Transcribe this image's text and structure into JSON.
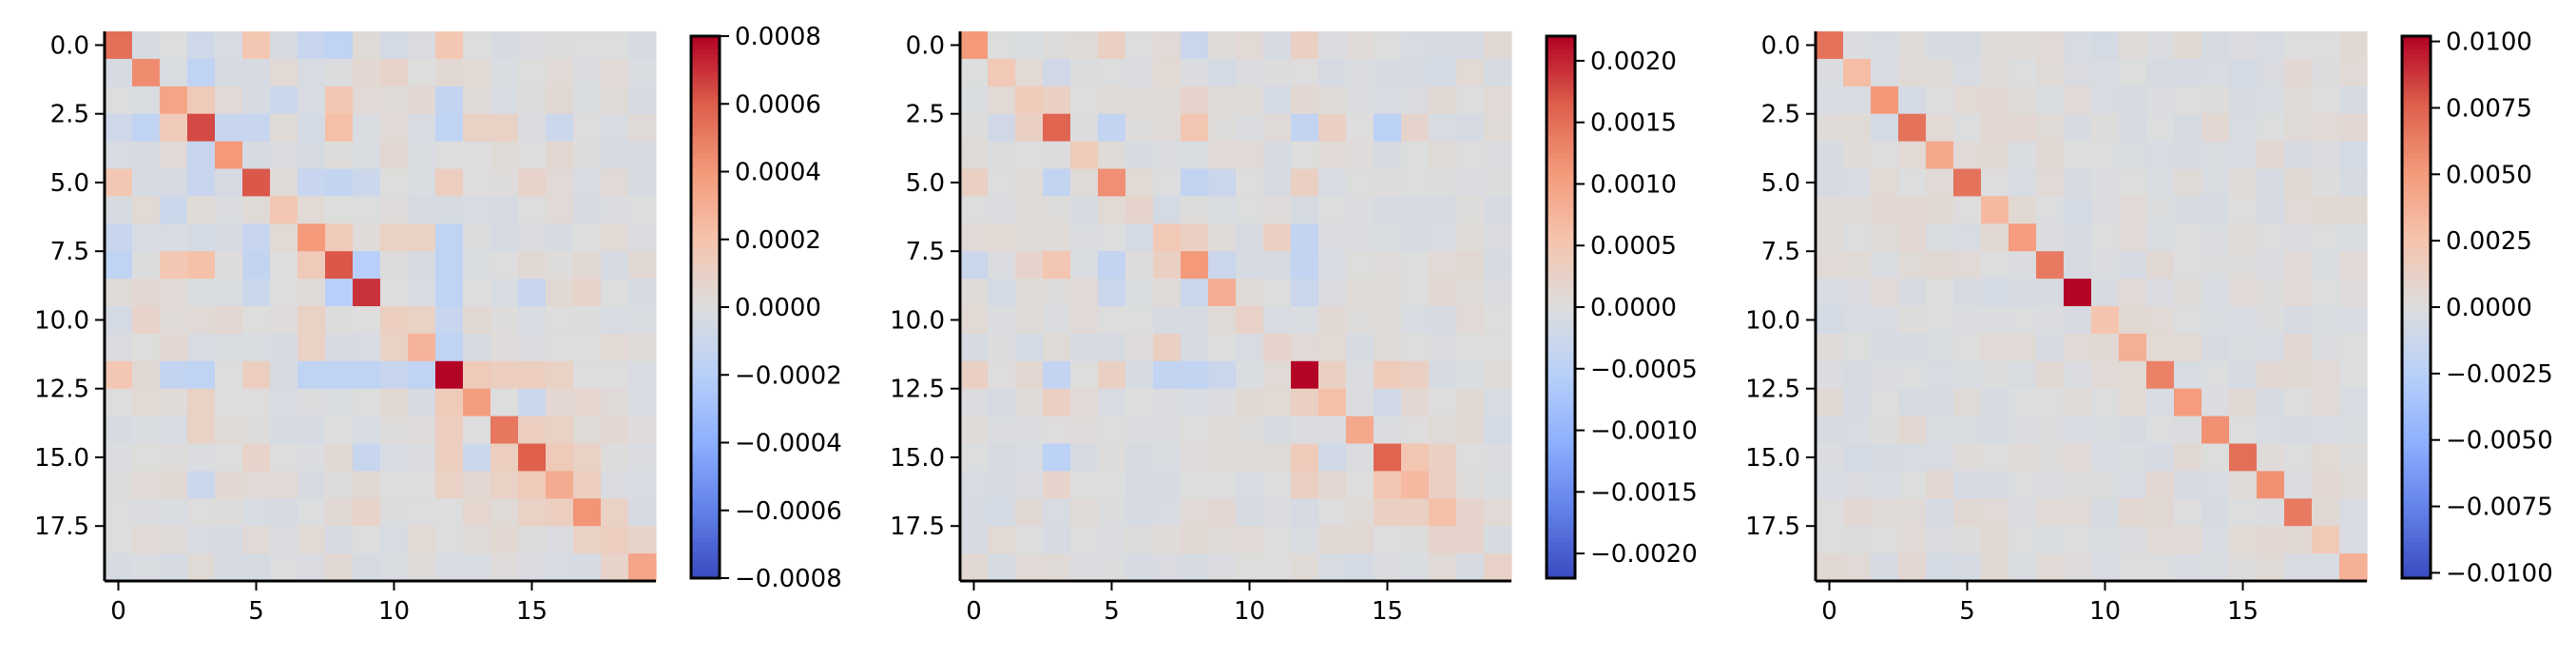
{
  "chart_data": [
    {
      "type": "heatmap",
      "size": 20,
      "vmin": -0.0008,
      "vmax": 0.0008,
      "colormap": "coolwarm",
      "x_ticks": [
        0,
        5,
        10,
        15
      ],
      "x_tick_labels": [
        "0",
        "5",
        "10",
        "15"
      ],
      "y_ticks": [
        0,
        2.5,
        5,
        7.5,
        10,
        12.5,
        15,
        17.5
      ],
      "y_tick_labels": [
        "0.0",
        "2.5",
        "5.0",
        "7.5",
        "10.0",
        "12.5",
        "15.0",
        "17.5"
      ],
      "colorbar_ticks": [
        0.0008,
        0.0006,
        0.0004,
        0.0002,
        0,
        -0.0002,
        -0.0004,
        -0.0006,
        -0.0008
      ],
      "colorbar_tick_labels": [
        "0.0008",
        "0.0006",
        "0.0004",
        "0.0002",
        "0.0000",
        "−0.0002",
        "−0.0004",
        "−0.0006",
        "−0.0008"
      ],
      "diagonal": [
        0.00055,
        0.00045,
        0.00035,
        0.00065,
        0.0004,
        0.00062,
        0.00018,
        0.0004,
        0.00062,
        0.0007,
        0.00012,
        0.00028,
        0.0008,
        0.00038,
        0.00052,
        0.0006,
        0.00032,
        0.00042,
        0.00012,
        0.00035
      ],
      "off_diagonal": [
        {
          "i": 0,
          "j": 5,
          "v": 0.00018
        },
        {
          "i": 0,
          "j": 12,
          "v": 0.00018
        },
        {
          "i": 0,
          "j": 7,
          "v": -0.00012
        },
        {
          "i": 0,
          "j": 8,
          "v": -0.00016
        },
        {
          "i": 0,
          "j": 3,
          "v": -8e-05
        },
        {
          "i": 1,
          "j": 3,
          "v": -0.00015
        },
        {
          "i": 1,
          "j": 10,
          "v": 8e-05
        },
        {
          "i": 2,
          "j": 3,
          "v": 0.00015
        },
        {
          "i": 2,
          "j": 8,
          "v": 0.00018
        },
        {
          "i": 2,
          "j": 12,
          "v": -0.00014
        },
        {
          "i": 2,
          "j": 6,
          "v": -0.0001
        },
        {
          "i": 3,
          "j": 8,
          "v": 0.00022
        },
        {
          "i": 3,
          "j": 4,
          "v": -0.00012
        },
        {
          "i": 3,
          "j": 5,
          "v": -0.00012
        },
        {
          "i": 3,
          "j": 12,
          "v": -0.00016
        },
        {
          "i": 3,
          "j": 13,
          "v": 0.0001
        },
        {
          "i": 3,
          "j": 14,
          "v": 0.0001
        },
        {
          "i": 3,
          "j": 16,
          "v": -0.0001
        },
        {
          "i": 5,
          "j": 8,
          "v": -0.00016
        },
        {
          "i": 5,
          "j": 12,
          "v": 0.00012
        },
        {
          "i": 5,
          "j": 7,
          "v": -0.00012
        },
        {
          "i": 5,
          "j": 9,
          "v": -0.0001
        },
        {
          "i": 5,
          "j": 15,
          "v": 8e-05
        },
        {
          "i": 7,
          "j": 8,
          "v": 0.00015
        },
        {
          "i": 7,
          "j": 12,
          "v": -0.00016
        },
        {
          "i": 7,
          "j": 10,
          "v": 0.0001
        },
        {
          "i": 8,
          "j": 9,
          "v": -0.0002
        },
        {
          "i": 8,
          "j": 12,
          "v": -0.00016
        },
        {
          "i": 8,
          "j": 5,
          "v": -0.00014
        },
        {
          "i": 9,
          "j": 12,
          "v": -0.00016
        },
        {
          "i": 9,
          "j": 15,
          "v": -0.00012
        },
        {
          "i": 9,
          "j": 17,
          "v": 8e-05
        },
        {
          "i": 10,
          "j": 11,
          "v": 0.0001
        },
        {
          "i": 10,
          "j": 12,
          "v": -0.00012
        },
        {
          "i": 11,
          "j": 12,
          "v": -0.00015
        },
        {
          "i": 11,
          "j": 7,
          "v": 0.0001
        },
        {
          "i": 12,
          "j": 13,
          "v": 0.00015
        },
        {
          "i": 12,
          "j": 14,
          "v": 0.00012
        },
        {
          "i": 12,
          "j": 15,
          "v": 0.00012
        },
        {
          "i": 12,
          "j": 16,
          "v": 0.0001
        },
        {
          "i": 13,
          "j": 15,
          "v": -0.0001
        },
        {
          "i": 13,
          "j": 17,
          "v": 6e-05
        },
        {
          "i": 14,
          "j": 15,
          "v": 0.00012
        },
        {
          "i": 14,
          "j": 16,
          "v": 0.0001
        },
        {
          "i": 15,
          "j": 16,
          "v": 0.00015
        },
        {
          "i": 15,
          "j": 17,
          "v": 0.0001
        },
        {
          "i": 16,
          "j": 17,
          "v": 0.00012
        },
        {
          "i": 17,
          "j": 18,
          "v": 0.0001
        },
        {
          "i": 18,
          "j": 19,
          "v": 8e-05
        }
      ]
    },
    {
      "type": "heatmap",
      "size": 20,
      "vmin": -0.0022,
      "vmax": 0.0022,
      "colormap": "coolwarm",
      "x_ticks": [
        0,
        5,
        10,
        15
      ],
      "x_tick_labels": [
        "0",
        "5",
        "10",
        "15"
      ],
      "y_ticks": [
        0,
        2.5,
        5,
        7.5,
        10,
        12.5,
        15,
        17.5
      ],
      "y_tick_labels": [
        "0.0",
        "2.5",
        "5.0",
        "7.5",
        "10.0",
        "12.5",
        "15.0",
        "17.5"
      ],
      "colorbar_ticks": [
        0.002,
        0.0015,
        0.001,
        0.0005,
        0,
        -0.0005,
        -0.001,
        -0.0015,
        -0.002
      ],
      "colorbar_tick_labels": [
        "0.0020",
        "0.0015",
        "0.0010",
        "0.0005",
        "0.0000",
        "−0.0005",
        "−0.0010",
        "−0.0015",
        "−0.0020"
      ],
      "diagonal": [
        0.0011,
        0.00045,
        0.0004,
        0.0016,
        0.0004,
        0.0012,
        0.0002,
        0.00045,
        0.0011,
        0.00085,
        0.00025,
        0.0002,
        0.0022,
        0.0006,
        0.0009,
        0.0016,
        0.0007,
        0.0006,
        0.0002,
        0.00025
      ],
      "off_diagonal": [
        {
          "i": 0,
          "j": 5,
          "v": 0.0003
        },
        {
          "i": 0,
          "j": 12,
          "v": 0.0003
        },
        {
          "i": 0,
          "j": 8,
          "v": -0.0003
        },
        {
          "i": 1,
          "j": 3,
          "v": -0.0002
        },
        {
          "i": 2,
          "j": 3,
          "v": 0.0003
        },
        {
          "i": 2,
          "j": 8,
          "v": 0.0002
        },
        {
          "i": 3,
          "j": 5,
          "v": -0.0004
        },
        {
          "i": 3,
          "j": 8,
          "v": 0.0005
        },
        {
          "i": 3,
          "j": 12,
          "v": -0.0004
        },
        {
          "i": 3,
          "j": 13,
          "v": 0.0003
        },
        {
          "i": 3,
          "j": 15,
          "v": -0.0005
        },
        {
          "i": 3,
          "j": 16,
          "v": 0.0002
        },
        {
          "i": 5,
          "j": 8,
          "v": -0.0004
        },
        {
          "i": 5,
          "j": 12,
          "v": 0.0003
        },
        {
          "i": 5,
          "j": 9,
          "v": -0.0003
        },
        {
          "i": 7,
          "j": 8,
          "v": 0.0003
        },
        {
          "i": 7,
          "j": 12,
          "v": -0.0004
        },
        {
          "i": 7,
          "j": 11,
          "v": 0.0003
        },
        {
          "i": 8,
          "j": 9,
          "v": -0.0003
        },
        {
          "i": 8,
          "j": 12,
          "v": -0.0004
        },
        {
          "i": 9,
          "j": 12,
          "v": -0.0003
        },
        {
          "i": 12,
          "j": 13,
          "v": 0.0003
        },
        {
          "i": 12,
          "j": 15,
          "v": 0.0004
        },
        {
          "i": 12,
          "j": 16,
          "v": 0.0003
        },
        {
          "i": 13,
          "j": 15,
          "v": -0.0002
        },
        {
          "i": 15,
          "j": 16,
          "v": 0.0005
        },
        {
          "i": 15,
          "j": 17,
          "v": 0.0003
        },
        {
          "i": 16,
          "j": 17,
          "v": 0.0003
        },
        {
          "i": 17,
          "j": 18,
          "v": 0.0002
        }
      ]
    },
    {
      "type": "heatmap",
      "size": 20,
      "vmin": -0.0102,
      "vmax": 0.0102,
      "colormap": "coolwarm",
      "x_ticks": [
        0,
        5,
        10,
        15
      ],
      "x_tick_labels": [
        "0",
        "5",
        "10",
        "15"
      ],
      "y_ticks": [
        0,
        2.5,
        5,
        7.5,
        10,
        12.5,
        15,
        17.5
      ],
      "y_tick_labels": [
        "0.0",
        "2.5",
        "5.0",
        "7.5",
        "10.0",
        "12.5",
        "15.0",
        "17.5"
      ],
      "colorbar_ticks": [
        0.01,
        0.0075,
        0.005,
        0.0025,
        0,
        -0.0025,
        -0.005,
        -0.0075,
        -0.01
      ],
      "colorbar_tick_labels": [
        "0.0100",
        "0.0075",
        "0.0050",
        "0.0025",
        "0.0000",
        "−0.0025",
        "−0.0050",
        "−0.0075",
        "−0.0100"
      ],
      "diagonal": [
        0.0068,
        0.003,
        0.0052,
        0.0068,
        0.0042,
        0.0068,
        0.0032,
        0.005,
        0.0065,
        0.0102,
        0.0025,
        0.0038,
        0.0062,
        0.005,
        0.0055,
        0.007,
        0.0055,
        0.0065,
        0.002,
        0.0038
      ],
      "off_diagonal": [
        {
          "i": 9,
          "j": 3,
          "v": -0.0004
        },
        {
          "i": 9,
          "j": 5,
          "v": -0.0004
        },
        {
          "i": 9,
          "j": 8,
          "v": -0.0004
        },
        {
          "i": 9,
          "j": 12,
          "v": -0.0003
        }
      ]
    }
  ]
}
